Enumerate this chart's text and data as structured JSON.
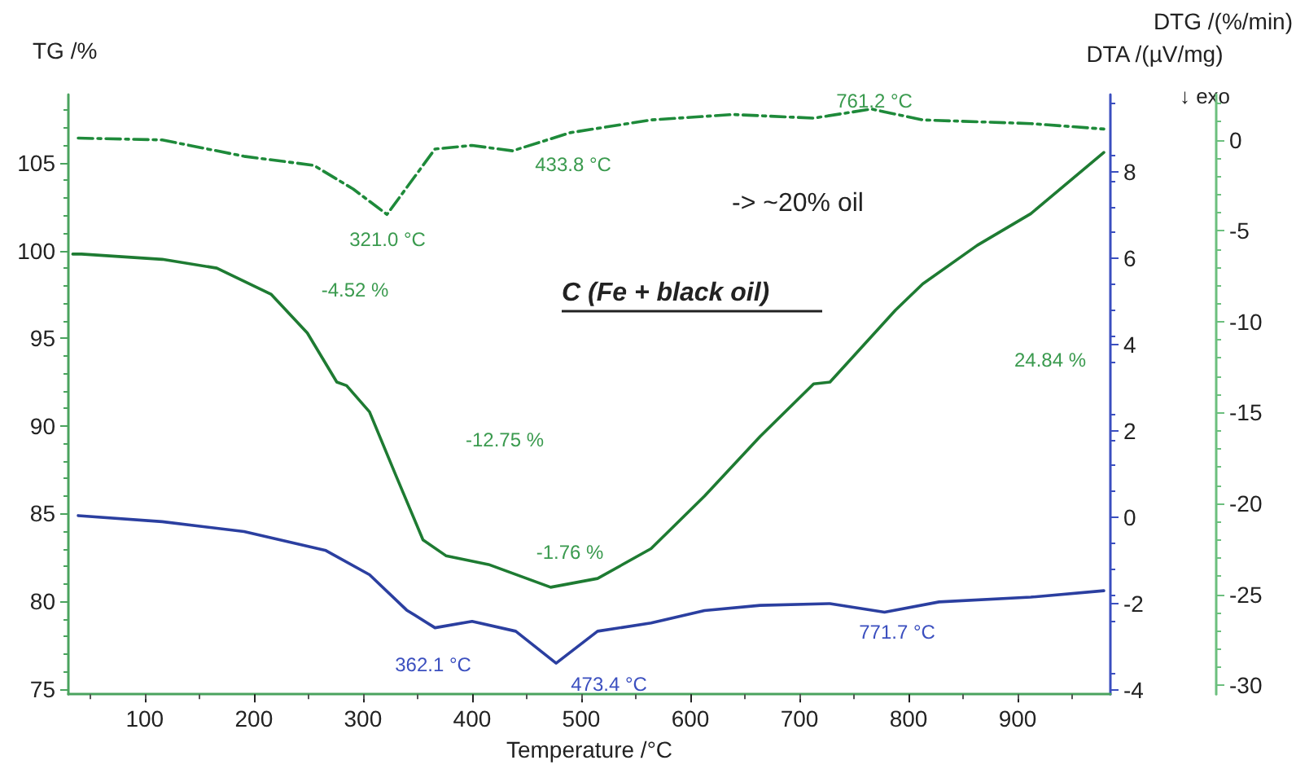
{
  "chart_data": {
    "type": "line",
    "title": "C (Fe + black oil)",
    "xlabel": "Temperature /°C",
    "ylabel": "TG /%",
    "y2label": "DTA /(µV/mg)",
    "y3label": "DTG /(%/min)",
    "xlim": [
      30,
      985
    ],
    "xticks": [
      100,
      200,
      300,
      400,
      500,
      600,
      700,
      800,
      900
    ],
    "ylim": [
      74.7,
      108.9
    ],
    "yticks": [
      75,
      80,
      85,
      90,
      95,
      100,
      105
    ],
    "y2lim": [
      -4.1,
      9.8
    ],
    "y2ticks": [
      -4,
      -2,
      0,
      2,
      4,
      6,
      8
    ],
    "y3lim": [
      -30.5,
      2.5
    ],
    "y3ticks": [
      -30,
      -25,
      -20,
      -15,
      -10,
      -5,
      0
    ],
    "marker": "none",
    "series": [
      {
        "color": "#1e7b32",
        "line_style": "solid",
        "x": [
          34,
          42,
          116,
          166,
          216,
          249,
          276,
          285,
          306,
          330,
          355,
          376,
          415,
          472,
          515,
          564,
          613,
          664,
          713,
          728,
          788,
          813,
          863,
          912,
          979
        ],
        "values": [
          99.8,
          99.8,
          99.5,
          99.0,
          97.5,
          95.3,
          92.5,
          92.3,
          90.8,
          87.2,
          83.5,
          82.6,
          82.1,
          80.8,
          81.3,
          83.0,
          86.0,
          89.4,
          92.4,
          92.5,
          96.6,
          98.1,
          100.3,
          102.1,
          105.6
        ]
      },
      {
        "axis": "y2",
        "color": "#2b3fa0",
        "line_style": "solid",
        "x": [
          39,
          116,
          191,
          266,
          306,
          340,
          366,
          400,
          440,
          477,
          515,
          564,
          613,
          664,
          728,
          778,
          828,
          912,
          979
        ],
        "values": [
          0.04,
          -0.1,
          -0.33,
          -0.77,
          -1.33,
          -2.15,
          -2.56,
          -2.41,
          -2.64,
          -3.38,
          -2.64,
          -2.45,
          -2.16,
          -2.04,
          -2.0,
          -2.2,
          -1.96,
          -1.85,
          -1.7
        ]
      },
      {
        "axis": "y3",
        "color": "#1e8a3a",
        "line_style": "dashed",
        "x": [
          39,
          116,
          191,
          255,
          291,
          322,
          366,
          400,
          437,
          490,
          564,
          639,
          713,
          766,
          813,
          912,
          979
        ],
        "values": [
          0.1,
          0,
          -0.9,
          -1.4,
          -2.7,
          -4.1,
          -0.5,
          -0.3,
          -0.6,
          0.4,
          1.1,
          1.4,
          1.2,
          1.7,
          1.1,
          0.9,
          0.6
        ]
      }
    ],
    "annotations": [
      "321.0 °C",
      "433.8 °C",
      "761.2 °C",
      "362.1 °C",
      "473.4 °C",
      "771.7 °C",
      "-4.52 %",
      "-12.75 %",
      "-1.76 %",
      "24.84 %",
      "-> ~20% oil",
      "↓ exo"
    ]
  }
}
